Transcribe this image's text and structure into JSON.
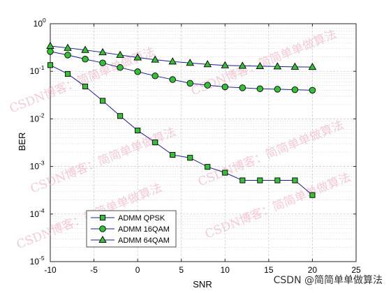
{
  "chart_data": {
    "type": "line",
    "xlabel": "SNR",
    "ylabel": "BER",
    "xlim": [
      -10,
      25
    ],
    "ylim": [
      1e-05,
      1
    ],
    "yscale": "log",
    "grid": true,
    "legend_position": "bottom-left",
    "x_ticks": [
      -10,
      -5,
      0,
      5,
      10,
      15,
      20,
      25
    ],
    "y_ticks": [
      {
        "base": "10",
        "exp": "0"
      },
      {
        "base": "10",
        "exp": "-1"
      },
      {
        "base": "10",
        "exp": "-2"
      },
      {
        "base": "10",
        "exp": "-3"
      },
      {
        "base": "10",
        "exp": "-4"
      },
      {
        "base": "10",
        "exp": "-5"
      }
    ],
    "x": [
      -10,
      -8,
      -6,
      -4,
      -2,
      0,
      2,
      4,
      6,
      8,
      10,
      12,
      14,
      16,
      18,
      20
    ],
    "series": [
      {
        "name": "ADMM QPSK",
        "marker": "square",
        "color": "#1a1a9c",
        "fill": "#33c233",
        "values": [
          0.135,
          0.088,
          0.048,
          0.024,
          0.0115,
          0.0057,
          0.0032,
          0.00175,
          0.00152,
          0.00098,
          0.00074,
          0.00051,
          0.00051,
          0.00051,
          0.00051,
          0.00025
        ]
      },
      {
        "name": "ADMM 16QAM",
        "marker": "circle",
        "color": "#1a1a9c",
        "fill": "#33c233",
        "values": [
          0.26,
          0.22,
          0.18,
          0.15,
          0.12,
          0.098,
          0.08,
          0.067,
          0.056,
          0.051,
          0.047,
          0.045,
          0.043,
          0.042,
          0.041,
          0.04
        ]
      },
      {
        "name": "ADMM 64QAM",
        "marker": "triangle",
        "color": "#1a1a9c",
        "fill": "#33c233",
        "values": [
          0.34,
          0.31,
          0.28,
          0.25,
          0.22,
          0.195,
          0.175,
          0.16,
          0.15,
          0.14,
          0.133,
          0.13,
          0.128,
          0.126,
          0.124,
          0.123
        ]
      }
    ]
  },
  "watermark_text": "CSDN博客：简简单单做算法",
  "credit_text": "CSDN @简简单单做算法"
}
